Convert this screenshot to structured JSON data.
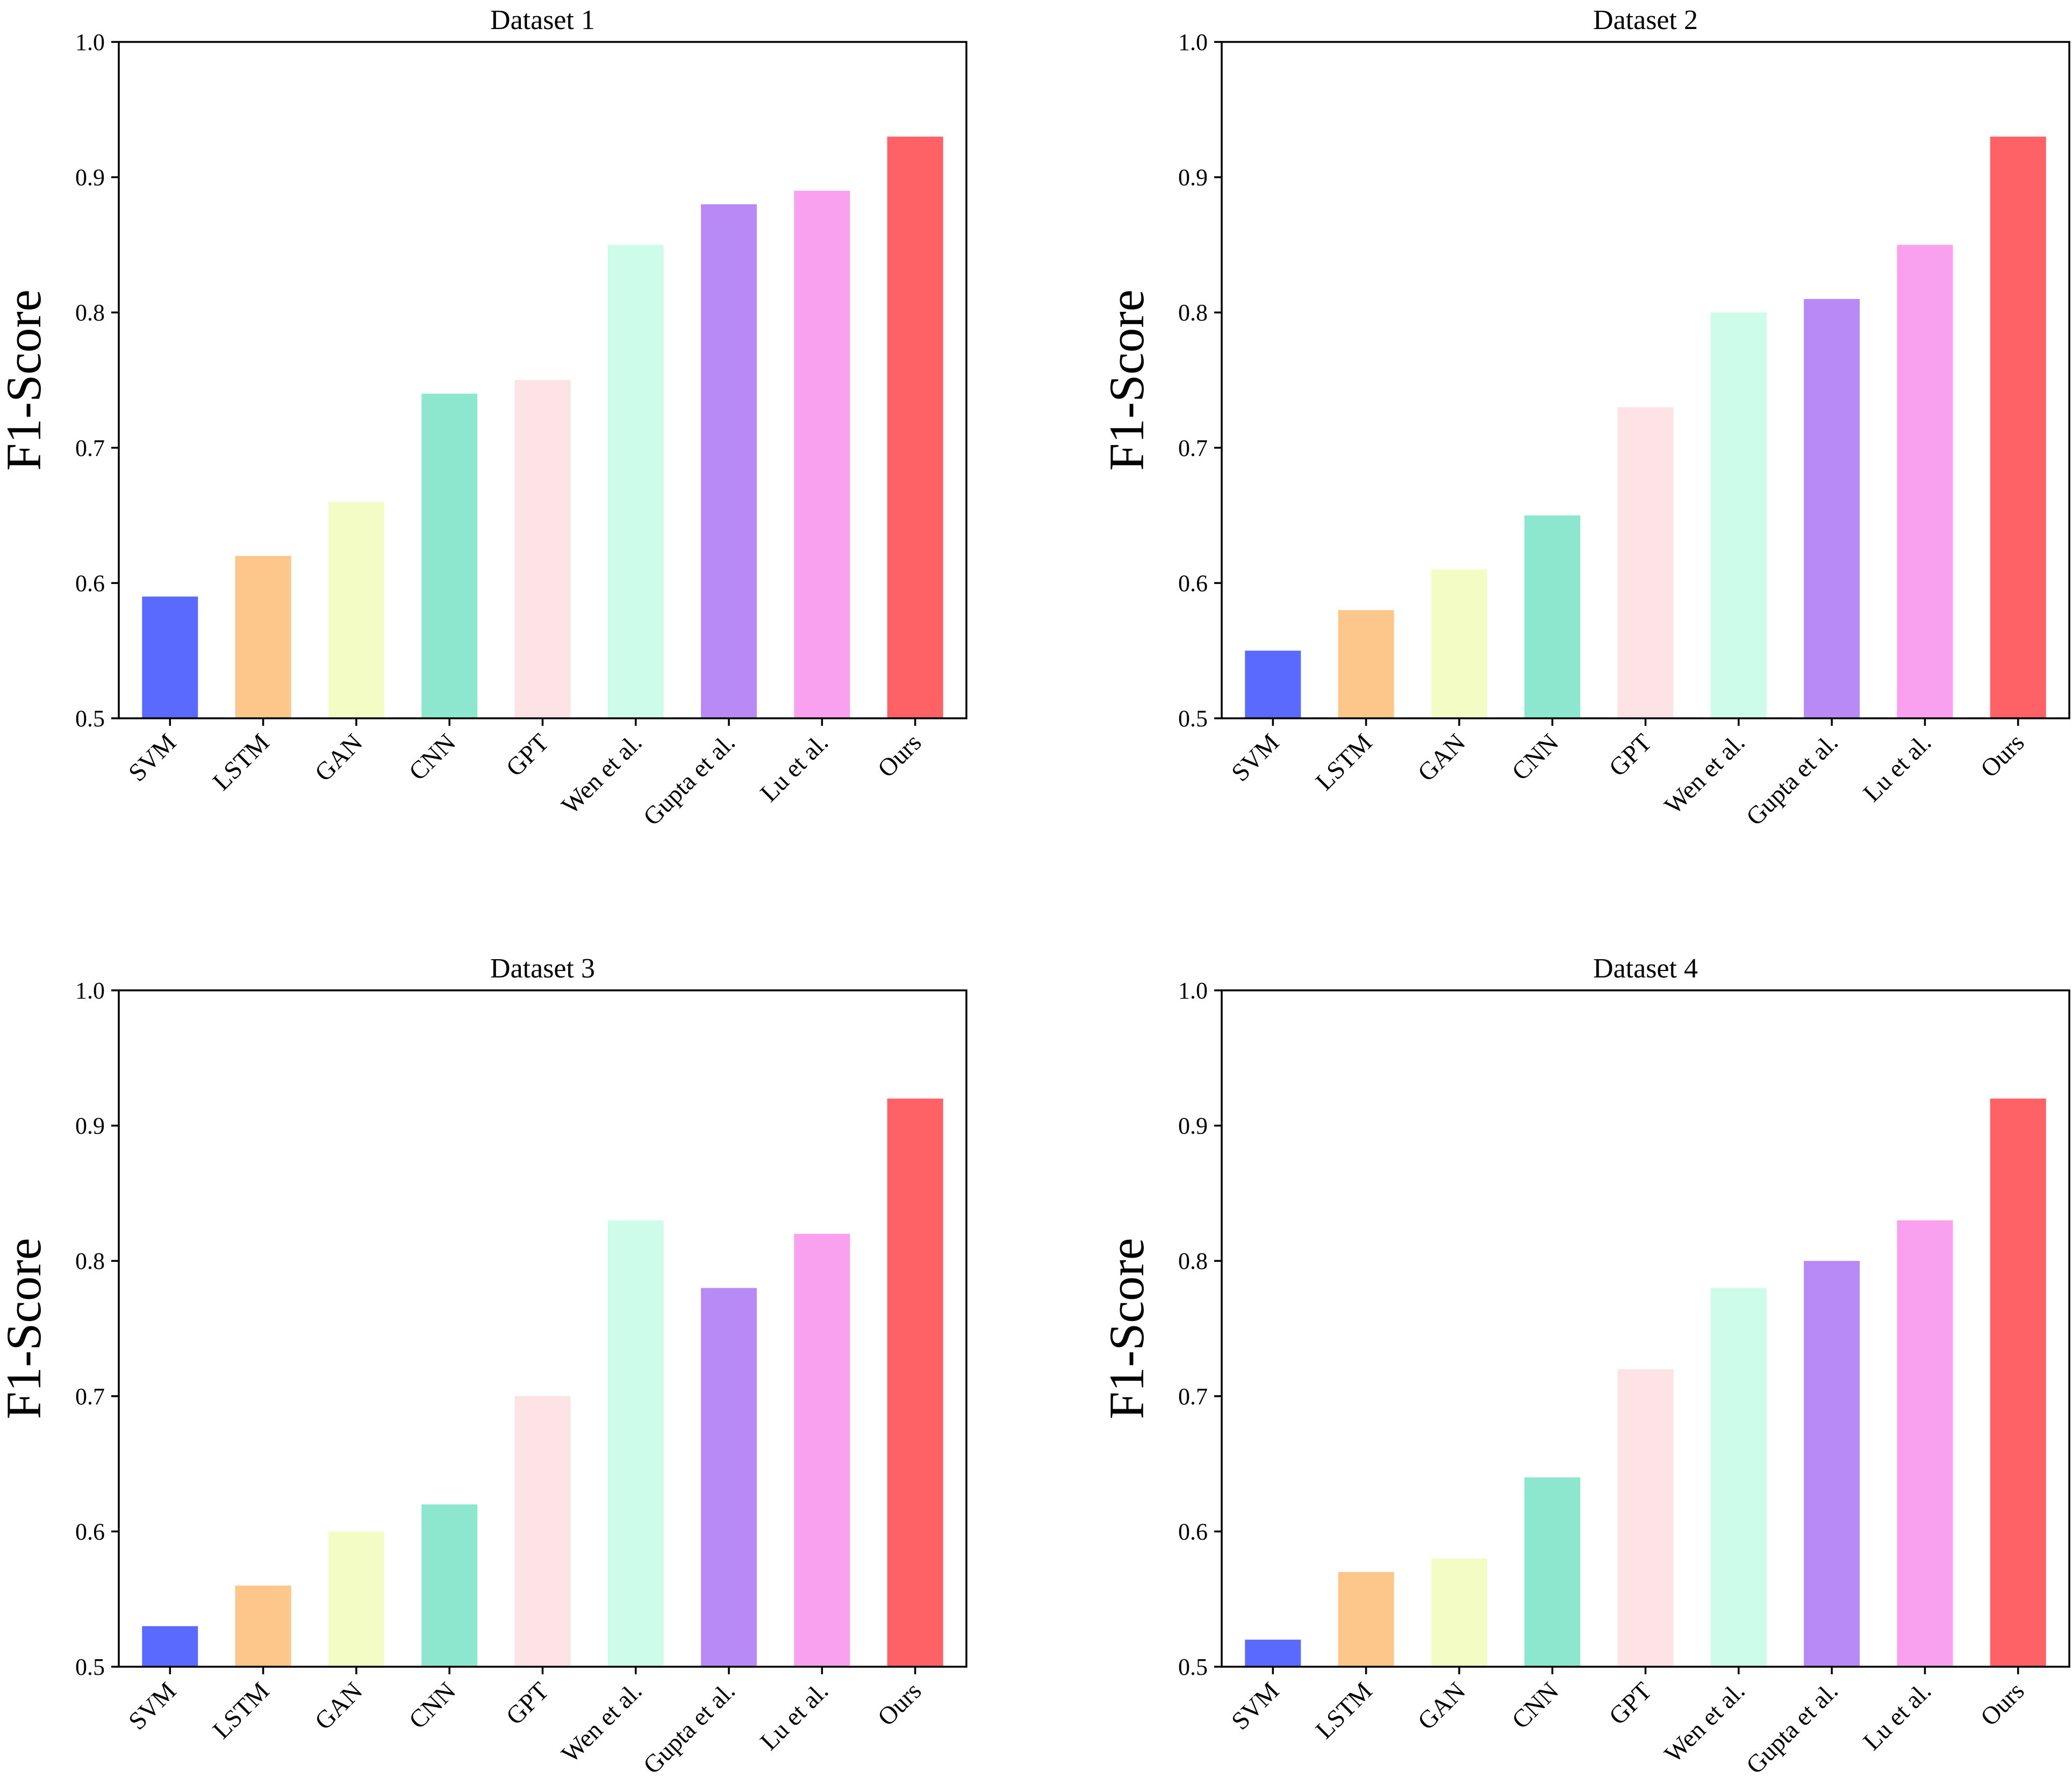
{
  "chart_data": [
    {
      "type": "bar",
      "title": "Dataset 1",
      "xlabel": "",
      "ylabel": "F1-Score",
      "ylim": [
        0.5,
        1.0
      ],
      "yticks": [
        "0.5",
        "0.6",
        "0.7",
        "0.8",
        "0.9",
        "1.0"
      ],
      "categories": [
        "SVM",
        "LSTM",
        "GAN",
        "CNN",
        "GPT",
        "Wen et al.",
        "Gupta et al.",
        "Lu et al.",
        "Ours"
      ],
      "values": [
        0.59,
        0.62,
        0.66,
        0.74,
        0.75,
        0.85,
        0.88,
        0.89,
        0.93
      ],
      "colors": [
        "#5a6aff",
        "#fdc68b",
        "#f3fcc5",
        "#8de6ce",
        "#fde2e6",
        "#cefcea",
        "#b78af5",
        "#f9a1ee",
        "#fe6266"
      ]
    },
    {
      "type": "bar",
      "title": "Dataset 2",
      "xlabel": "",
      "ylabel": "F1-Score",
      "ylim": [
        0.5,
        1.0
      ],
      "yticks": [
        "0.5",
        "0.6",
        "0.7",
        "0.8",
        "0.9",
        "1.0"
      ],
      "categories": [
        "SVM",
        "LSTM",
        "GAN",
        "CNN",
        "GPT",
        "Wen et al.",
        "Gupta et al.",
        "Lu et al.",
        "Ours"
      ],
      "values": [
        0.55,
        0.58,
        0.61,
        0.65,
        0.73,
        0.8,
        0.81,
        0.85,
        0.93
      ],
      "colors": [
        "#5a6aff",
        "#fdc68b",
        "#f3fcc5",
        "#8de6ce",
        "#fde2e6",
        "#cefcea",
        "#b78af5",
        "#f9a1ee",
        "#fe6266"
      ]
    },
    {
      "type": "bar",
      "title": "Dataset 3",
      "xlabel": "",
      "ylabel": "F1-Score",
      "ylim": [
        0.5,
        1.0
      ],
      "yticks": [
        "0.5",
        "0.6",
        "0.7",
        "0.8",
        "0.9",
        "1.0"
      ],
      "categories": [
        "SVM",
        "LSTM",
        "GAN",
        "CNN",
        "GPT",
        "Wen et al.",
        "Gupta et al.",
        "Lu et al.",
        "Ours"
      ],
      "values": [
        0.53,
        0.56,
        0.6,
        0.62,
        0.7,
        0.83,
        0.78,
        0.82,
        0.92
      ],
      "colors": [
        "#5a6aff",
        "#fdc68b",
        "#f3fcc5",
        "#8de6ce",
        "#fde2e6",
        "#cefcea",
        "#b78af5",
        "#f9a1ee",
        "#fe6266"
      ]
    },
    {
      "type": "bar",
      "title": "Dataset 4",
      "xlabel": "",
      "ylabel": "F1-Score",
      "ylim": [
        0.5,
        1.0
      ],
      "yticks": [
        "0.5",
        "0.6",
        "0.7",
        "0.8",
        "0.9",
        "1.0"
      ],
      "categories": [
        "SVM",
        "LSTM",
        "GAN",
        "CNN",
        "GPT",
        "Wen et al.",
        "Gupta et al.",
        "Lu et al.",
        "Ours"
      ],
      "values": [
        0.52,
        0.57,
        0.58,
        0.64,
        0.72,
        0.78,
        0.8,
        0.83,
        0.92
      ],
      "colors": [
        "#5a6aff",
        "#fdc68b",
        "#f3fcc5",
        "#8de6ce",
        "#fde2e6",
        "#cefcea",
        "#b78af5",
        "#f9a1ee",
        "#fe6266"
      ]
    }
  ]
}
